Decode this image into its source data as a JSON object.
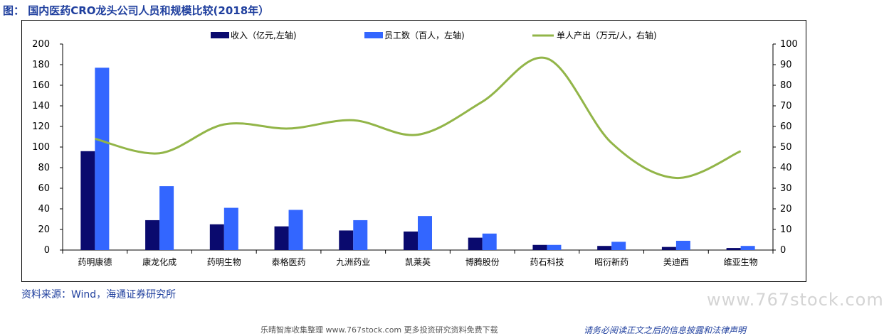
{
  "figure": {
    "title": "图：  国内医药CRO龙头公司人员和规模比较(2018年）",
    "source": "资料来源：Wind，海通证券研究所",
    "watermark": "www.767stock.com",
    "footer_left": "乐晴智库收集整理 www.767stock.com 更多投资研究资料免费下载",
    "footer_right": "请务必阅读正文之后的信息披露和法律声明"
  },
  "colors": {
    "revenue": "#0a0a6e",
    "employees": "#3366ff",
    "output": "#92b548",
    "title": "#1f3f9e"
  },
  "chart_data": {
    "type": "bar",
    "categories": [
      "药明康德",
      "康龙化成",
      "药明生物",
      "泰格医药",
      "九洲药业",
      "凯莱英",
      "博腾股份",
      "药石科技",
      "昭衍新药",
      "美迪西",
      "维亚生物"
    ],
    "series": [
      {
        "name": "收入（亿元,左轴",
        "type": "bar",
        "axis": "left",
        "values": [
          96,
          29,
          25,
          23,
          19,
          18,
          12,
          5,
          4,
          3,
          2
        ]
      },
      {
        "name": "员工数（百人，左轴",
        "type": "bar",
        "axis": "left",
        "values": [
          177,
          62,
          41,
          39,
          29,
          33,
          16,
          5,
          8,
          9,
          4
        ]
      },
      {
        "name": "单人产出（万元/人，右轴",
        "type": "line",
        "axis": "right",
        "values": [
          54,
          47,
          61,
          59,
          63,
          56,
          72,
          93,
          52,
          35,
          48
        ]
      }
    ],
    "y_left": {
      "min": 0,
      "max": 200,
      "ticks": [
        "0",
        "20",
        "40",
        "60",
        "80",
        "100",
        "120",
        "140",
        "160",
        "180",
        "200"
      ]
    },
    "y_right": {
      "min": 0,
      "max": 100,
      "ticks": [
        "0",
        "10",
        "20",
        "30",
        "40",
        "50",
        "60",
        "70",
        "80",
        "90",
        "100"
      ]
    },
    "grid": false,
    "legend_position": "top"
  }
}
